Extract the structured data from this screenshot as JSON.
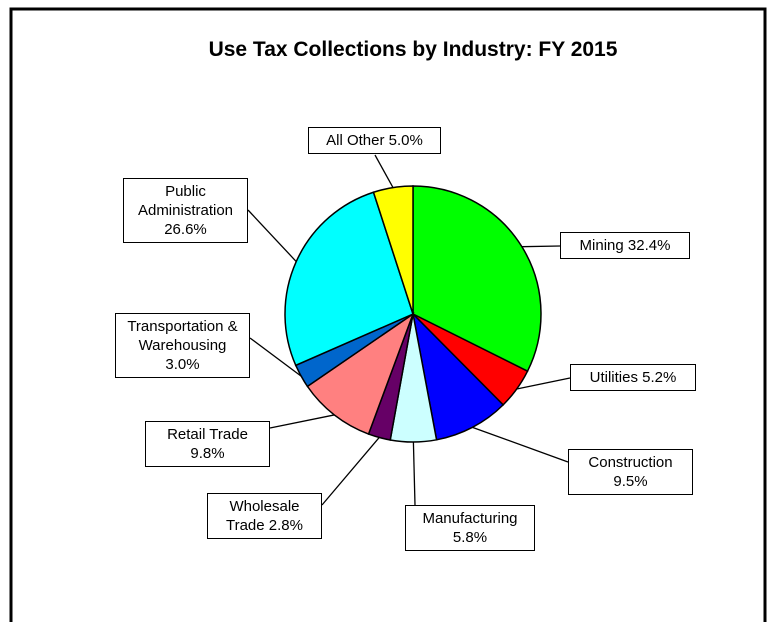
{
  "chart_data": {
    "type": "pie",
    "title": "Use Tax Collections by Industry: FY 2015",
    "categories": [
      "Mining",
      "Utilities",
      "Construction",
      "Manufacturing",
      "Wholesale Trade",
      "Retail Trade",
      "Transportation & Warehousing",
      "Public Administration",
      "All Other"
    ],
    "values": [
      32.4,
      5.2,
      9.5,
      5.8,
      2.8,
      9.8,
      3.0,
      26.6,
      5.0
    ],
    "value_labels": [
      "32.4%",
      "5.2%",
      "9.5%",
      "5.8%",
      "2.8%",
      "9.8%",
      "3.0%",
      "26.6%",
      "5.0%"
    ],
    "colors": [
      "#00ff00",
      "#ff0000",
      "#0000ff",
      "#ccffff",
      "#660066",
      "#ff8080",
      "#0066cc",
      "#00ffff",
      "#ffff00"
    ]
  }
}
